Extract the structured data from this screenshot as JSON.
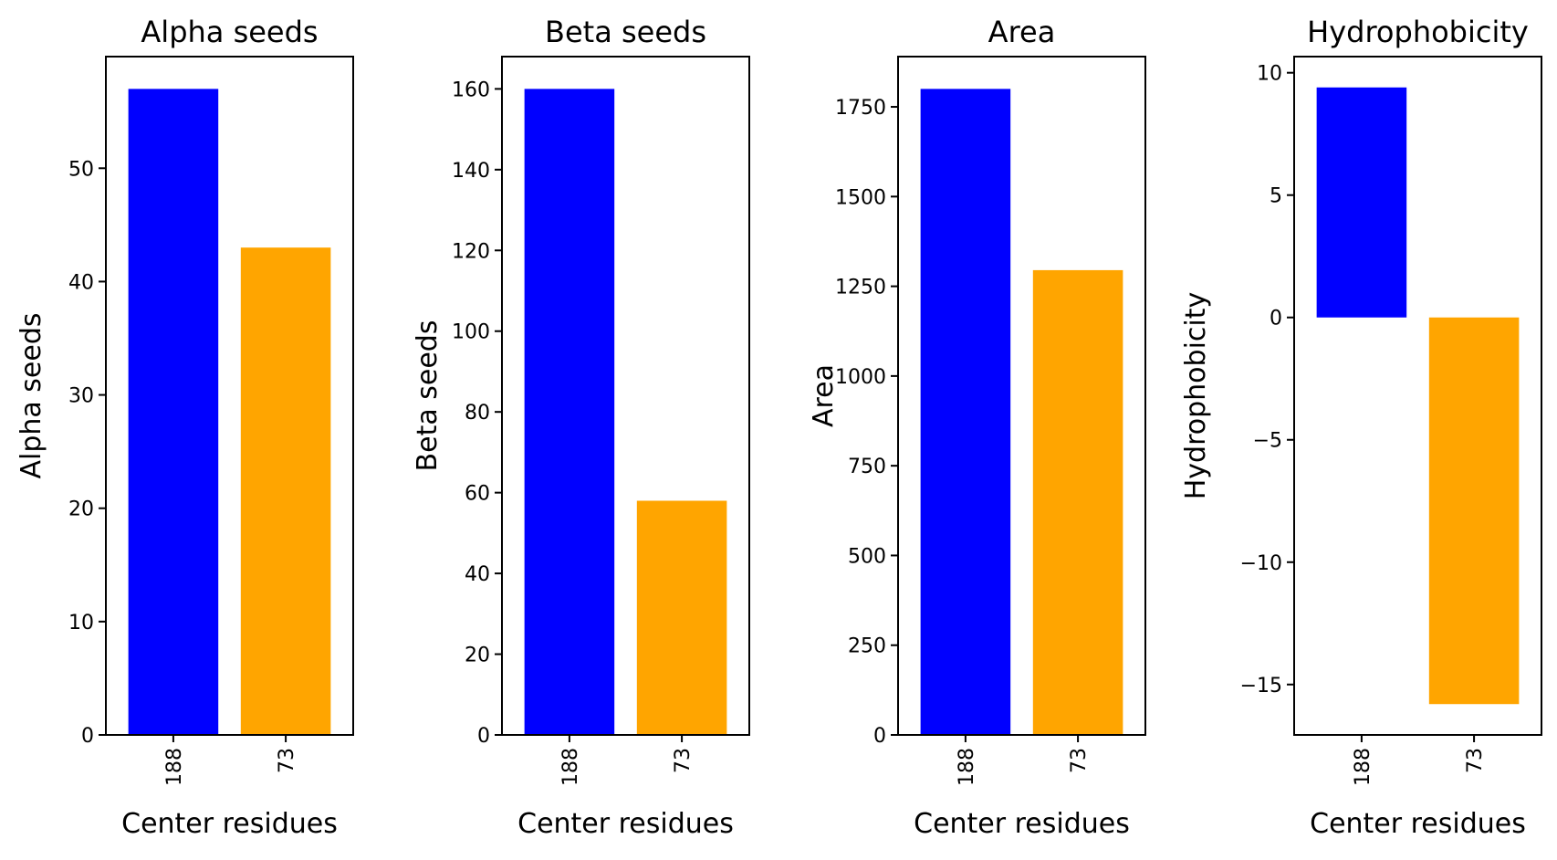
{
  "colors": {
    "bar_188": "#0000ff",
    "bar_73": "#ffa500",
    "axes": "#000000",
    "background": "#ffffff"
  },
  "chart_data": [
    {
      "type": "bar",
      "title": "Alpha seeds",
      "xlabel": "Center residues",
      "ylabel": "Alpha seeds",
      "categories": [
        "188",
        "73"
      ],
      "values": [
        57,
        43
      ],
      "ylim": [
        0,
        59.85
      ],
      "yticks": [
        0,
        10,
        20,
        30,
        40,
        50
      ],
      "ytick_labels": [
        "0",
        "10",
        "20",
        "30",
        "40",
        "50"
      ],
      "grid": false,
      "bar_colors": [
        "#0000ff",
        "#ffa500"
      ]
    },
    {
      "type": "bar",
      "title": "Beta seeds",
      "xlabel": "Center residues",
      "ylabel": "Beta seeds",
      "categories": [
        "188",
        "73"
      ],
      "values": [
        160,
        58
      ],
      "ylim": [
        0,
        168
      ],
      "yticks": [
        0,
        20,
        40,
        60,
        80,
        100,
        120,
        140,
        160
      ],
      "ytick_labels": [
        "0",
        "20",
        "40",
        "60",
        "80",
        "100",
        "120",
        "140",
        "160"
      ],
      "grid": false,
      "bar_colors": [
        "#0000ff",
        "#ffa500"
      ]
    },
    {
      "type": "bar",
      "title": "Area",
      "xlabel": "Center residues",
      "ylabel": "Area",
      "categories": [
        "188",
        "73"
      ],
      "values": [
        1800,
        1295
      ],
      "ylim": [
        0,
        1890
      ],
      "yticks": [
        0,
        250,
        500,
        750,
        1000,
        1250,
        1500,
        1750
      ],
      "ytick_labels": [
        "0",
        "250",
        "500",
        "750",
        "1000",
        "1250",
        "1500",
        "1750"
      ],
      "grid": false,
      "bar_colors": [
        "#0000ff",
        "#ffa500"
      ]
    },
    {
      "type": "bar",
      "title": "Hydrophobicity",
      "xlabel": "Center residues",
      "ylabel": "Hydrophobicity",
      "categories": [
        "188",
        "73"
      ],
      "values": [
        9.4,
        -15.8
      ],
      "ylim": [
        -17.06,
        10.66
      ],
      "yticks": [
        -15,
        -10,
        -5,
        0,
        5,
        10
      ],
      "ytick_labels": [
        "−15",
        "−10",
        "−5",
        "0",
        "5",
        "10"
      ],
      "grid": false,
      "bar_colors": [
        "#0000ff",
        "#ffa500"
      ]
    }
  ]
}
